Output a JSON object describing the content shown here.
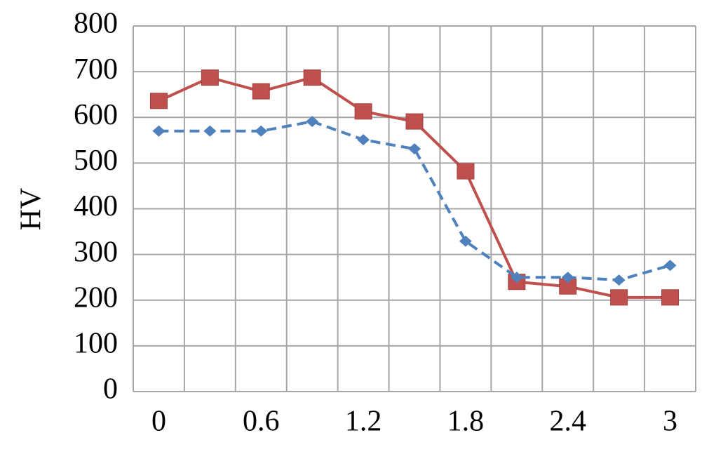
{
  "chart_data": {
    "type": "line",
    "y_label": "HV",
    "categories": [
      "0",
      null,
      "0.6",
      null,
      "1.2",
      null,
      "1.8",
      null,
      "2.4",
      null,
      "3"
    ],
    "series": [
      {
        "color": "#c0504d",
        "marker": "square",
        "dashed": false,
        "values": [
          636,
          687,
          657,
          687,
          613,
          591,
          482,
          240,
          230,
          206,
          206
        ]
      },
      {
        "color": "#4f81bd",
        "marker": "diamond",
        "dashed": true,
        "values": [
          570,
          570,
          570,
          591,
          551,
          531,
          329,
          250,
          250,
          244,
          276
        ]
      }
    ],
    "ylim": [
      0,
      800
    ],
    "yticks": [
      0,
      100,
      200,
      300,
      400,
      500,
      600,
      700,
      800
    ],
    "grid": true
  }
}
